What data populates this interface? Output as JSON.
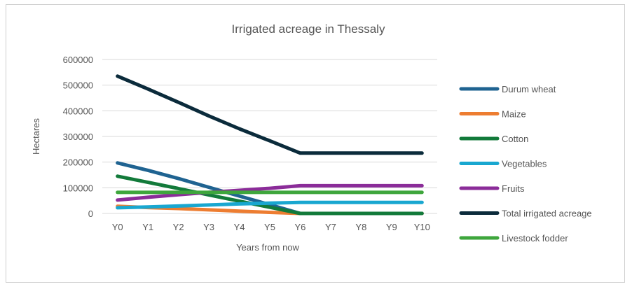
{
  "chart_data": {
    "type": "line",
    "title": "Irrigated acreage in Thessaly",
    "xlabel": "Years from now",
    "ylabel": "Hectares",
    "categories": [
      "Y0",
      "Y1",
      "Y2",
      "Y3",
      "Y4",
      "Y5",
      "Y6",
      "Y7",
      "Y8",
      "Y9",
      "Y10"
    ],
    "ylim": [
      0,
      600000
    ],
    "yticks": [
      0,
      100000,
      200000,
      300000,
      400000,
      500000,
      600000
    ],
    "ytick_labels": [
      "0",
      "100000",
      "200000",
      "300000",
      "400000",
      "500000",
      "600000"
    ],
    "grid": true,
    "legend_position": "right",
    "series": [
      {
        "name": "Durum wheat",
        "color": "#1f6391",
        "values": [
          197000,
          168000,
          136000,
          102000,
          68000,
          34000,
          0,
          0,
          0,
          0,
          0
        ]
      },
      {
        "name": "Maize",
        "color": "#ed7d31",
        "values": [
          28000,
          23000,
          19000,
          14000,
          9000,
          4000,
          0,
          0,
          0,
          0,
          0
        ]
      },
      {
        "name": "Cotton",
        "color": "#127a3a",
        "values": [
          145000,
          121000,
          97000,
          72000,
          48000,
          24000,
          0,
          0,
          0,
          0,
          0
        ]
      },
      {
        "name": "Vegetables",
        "color": "#19a7d0",
        "values": [
          22000,
          25000,
          29000,
          33000,
          37000,
          40000,
          43000,
          43000,
          43000,
          43000,
          43000
        ]
      },
      {
        "name": "Fruits",
        "color": "#8b2c99",
        "values": [
          52000,
          63000,
          73000,
          82000,
          90000,
          98000,
          108000,
          108000,
          108000,
          108000,
          108000
        ]
      },
      {
        "name": "Total irrigated acreage",
        "color": "#0b2b3b",
        "values": [
          535000,
          485000,
          433000,
          380000,
          330000,
          283000,
          235000,
          235000,
          235000,
          235000,
          235000
        ]
      },
      {
        "name": "Livestock fodder",
        "color": "#3ea63c",
        "values": [
          82000,
          82000,
          82000,
          82000,
          82000,
          82000,
          82000,
          82000,
          82000,
          82000,
          82000
        ]
      }
    ]
  }
}
